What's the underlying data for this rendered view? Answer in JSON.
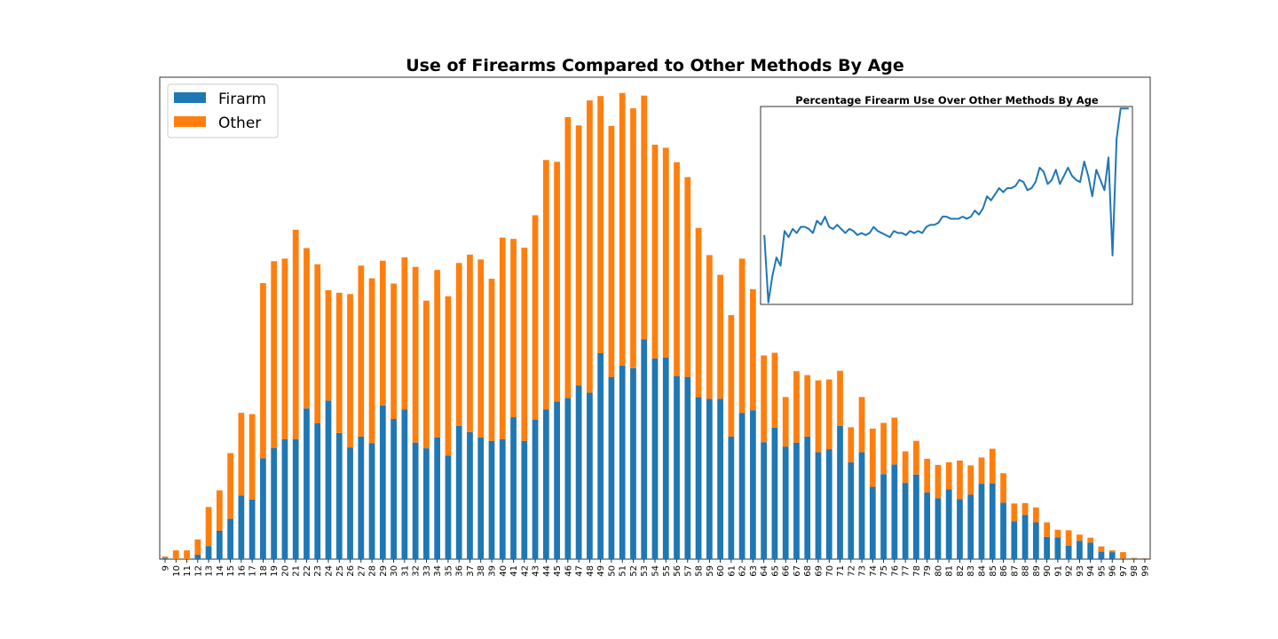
{
  "chart_data": [
    {
      "type": "bar",
      "stacked": true,
      "title": "Use of Firearms Compared to Other Methods By Age",
      "xlabel": "",
      "ylabel": "",
      "grid": false,
      "legend_position": "top-left",
      "y_ticks_visible": false,
      "ylim": [
        0,
        1100
      ],
      "categories": [
        "9",
        "10",
        "11",
        "12",
        "13",
        "14",
        "15",
        "16",
        "17",
        "18",
        "19",
        "20",
        "21",
        "22",
        "23",
        "24",
        "25",
        "26",
        "27",
        "28",
        "29",
        "30",
        "31",
        "32",
        "33",
        "34",
        "35",
        "36",
        "37",
        "38",
        "39",
        "40",
        "41",
        "42",
        "43",
        "44",
        "45",
        "46",
        "47",
        "48",
        "49",
        "50",
        "51",
        "52",
        "53",
        "54",
        "55",
        "56",
        "57",
        "58",
        "59",
        "60",
        "61",
        "62",
        "63",
        "64",
        "65",
        "66",
        "67",
        "68",
        "69",
        "70",
        "71",
        "72",
        "73",
        "74",
        "75",
        "76",
        "77",
        "78",
        "79",
        "80",
        "81",
        "82",
        "83",
        "84",
        "85",
        "86",
        "87",
        "88",
        "89",
        "90",
        "91",
        "92",
        "93",
        "94",
        "95",
        "96",
        "97",
        "98",
        "99"
      ],
      "series": [
        {
          "name": "Firarm",
          "color": "#1f77b4",
          "values": [
            2,
            0,
            0,
            10,
            30,
            65,
            92,
            145,
            136,
            230,
            254,
            274,
            274,
            344,
            310,
            362,
            288,
            255,
            280,
            265,
            351,
            320,
            342,
            266,
            253,
            278,
            236,
            304,
            290,
            278,
            270,
            274,
            324,
            270,
            318,
            342,
            360,
            368,
            396,
            380,
            470,
            416,
            442,
            436,
            502,
            458,
            460,
            418,
            416,
            370,
            366,
            366,
            280,
            334,
            340,
            267,
            300,
            257,
            266,
            280,
            244,
            251,
            304,
            221,
            244,
            165,
            194,
            216,
            174,
            193,
            152,
            139,
            159,
            137,
            147,
            172,
            173,
            129,
            86,
            101,
            84,
            51,
            50,
            31,
            42,
            38,
            17,
            16,
            1,
            1,
            1
          ]
        },
        {
          "name": "Other",
          "color": "#ff7f0e",
          "values": [
            4,
            20,
            20,
            35,
            89,
            92,
            150,
            189,
            195,
            400,
            426,
            412,
            478,
            366,
            363,
            252,
            320,
            350,
            390,
            376,
            330,
            309,
            347,
            401,
            337,
            382,
            364,
            372,
            405,
            406,
            370,
            460,
            407,
            441,
            467,
            569,
            547,
            641,
            594,
            667,
            587,
            573,
            622,
            593,
            556,
            488,
            479,
            488,
            456,
            386,
            328,
            283,
            277,
            352,
            276,
            198,
            171,
            113,
            163,
            140,
            164,
            159,
            126,
            80,
            126,
            133,
            117,
            107,
            72,
            77,
            77,
            76,
            62,
            88,
            67,
            60,
            79,
            67,
            41,
            27,
            34,
            33,
            17,
            35,
            14,
            11,
            12,
            4,
            15,
            2,
            1
          ]
        }
      ]
    },
    {
      "type": "line",
      "title": "Percentage Firearm Use Over Other Methods By Age",
      "xlabel": "",
      "ylabel": "",
      "grid": false,
      "ticks_visible": false,
      "color": "#1f77b4",
      "x": [
        9,
        10,
        11,
        12,
        13,
        14,
        15,
        16,
        17,
        18,
        19,
        20,
        21,
        22,
        23,
        24,
        25,
        26,
        27,
        28,
        29,
        30,
        31,
        32,
        33,
        34,
        35,
        36,
        37,
        38,
        39,
        40,
        41,
        42,
        43,
        44,
        45,
        46,
        47,
        48,
        49,
        50,
        51,
        52,
        53,
        54,
        55,
        56,
        57,
        58,
        59,
        60,
        61,
        62,
        63,
        64,
        65,
        66,
        67,
        68,
        69,
        70,
        71,
        72,
        73,
        74,
        75,
        76,
        77,
        78,
        79,
        80,
        81,
        82,
        83,
        84,
        85,
        86,
        87,
        88,
        89,
        90,
        91,
        92,
        93,
        94,
        95,
        96,
        97,
        98,
        99
      ],
      "values": [
        0.33,
        0.0,
        0.13,
        0.22,
        0.18,
        0.35,
        0.32,
        0.36,
        0.34,
        0.37,
        0.37,
        0.36,
        0.34,
        0.4,
        0.38,
        0.42,
        0.37,
        0.36,
        0.38,
        0.36,
        0.34,
        0.36,
        0.35,
        0.33,
        0.34,
        0.33,
        0.34,
        0.37,
        0.35,
        0.34,
        0.33,
        0.32,
        0.35,
        0.34,
        0.34,
        0.33,
        0.35,
        0.34,
        0.35,
        0.34,
        0.37,
        0.38,
        0.38,
        0.39,
        0.42,
        0.42,
        0.41,
        0.41,
        0.41,
        0.42,
        0.41,
        0.42,
        0.45,
        0.43,
        0.46,
        0.52,
        0.5,
        0.53,
        0.56,
        0.54,
        0.56,
        0.56,
        0.57,
        0.6,
        0.59,
        0.55,
        0.56,
        0.59,
        0.66,
        0.64,
        0.58,
        0.6,
        0.65,
        0.58,
        0.62,
        0.66,
        0.62,
        0.6,
        0.59,
        0.69,
        0.62,
        0.52,
        0.65,
        0.6,
        0.55,
        0.71,
        0.23,
        0.8,
        0.95,
        0.95,
        0.95
      ]
    }
  ]
}
